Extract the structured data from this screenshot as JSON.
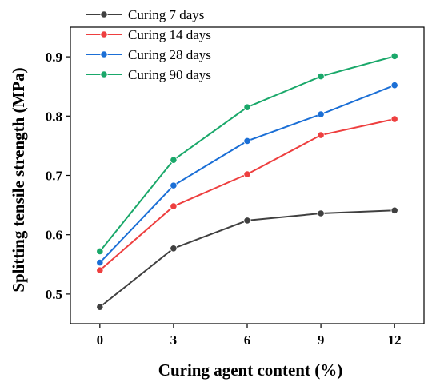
{
  "chart_data": {
    "type": "line",
    "xlabel": "Curing agent content (%)",
    "ylabel": "Splitting tensile strength (MPa)",
    "x": [
      0,
      3,
      6,
      9,
      12
    ],
    "x_ticks": [
      "0",
      "3",
      "6",
      "9",
      "12"
    ],
    "xlim": [
      -1.2,
      13.2
    ],
    "ylim": [
      0.45,
      0.95
    ],
    "y_ticks": [
      "0.5",
      "0.6",
      "0.7",
      "0.8",
      "0.9"
    ],
    "grid": false,
    "legend_position": "top-left",
    "series": [
      {
        "name": "Curing 7 days",
        "color": "#404040",
        "values": [
          0.478,
          0.577,
          0.624,
          0.636,
          0.641
        ]
      },
      {
        "name": "Curing 14 days",
        "color": "#ee3f3f",
        "values": [
          0.54,
          0.648,
          0.702,
          0.768,
          0.795
        ]
      },
      {
        "name": "Curing 28 days",
        "color": "#1b6fd6",
        "values": [
          0.553,
          0.683,
          0.758,
          0.803,
          0.852
        ]
      },
      {
        "name": "Curing 90 days",
        "color": "#1aa86a",
        "values": [
          0.572,
          0.726,
          0.815,
          0.867,
          0.901
        ]
      }
    ]
  }
}
